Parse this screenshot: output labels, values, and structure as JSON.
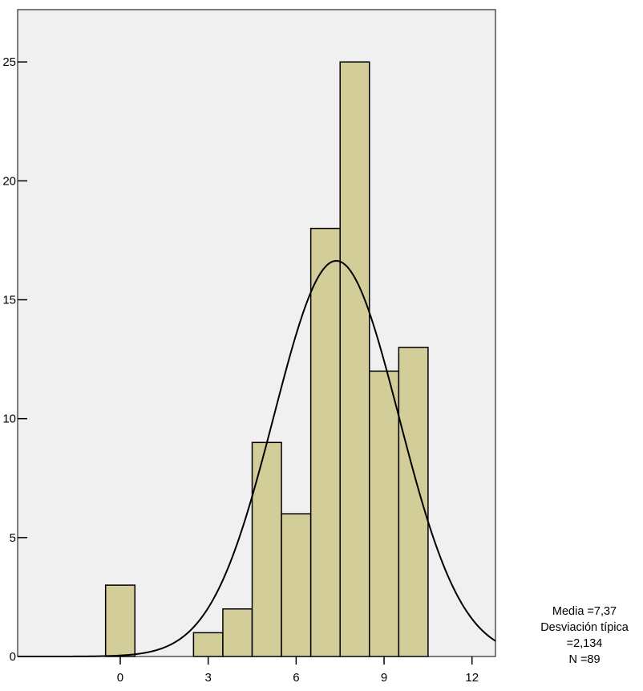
{
  "chart_data": {
    "type": "bar",
    "subtype": "histogram",
    "bins": [
      {
        "from": -0.5,
        "to": 0.5,
        "value": 3
      },
      {
        "from": 2.5,
        "to": 3.5,
        "value": 1
      },
      {
        "from": 3.5,
        "to": 4.5,
        "value": 2
      },
      {
        "from": 4.5,
        "to": 5.5,
        "value": 9
      },
      {
        "from": 5.5,
        "to": 6.5,
        "value": 6
      },
      {
        "from": 6.5,
        "to": 7.5,
        "value": 18
      },
      {
        "from": 7.5,
        "to": 8.5,
        "value": 25
      },
      {
        "from": 8.5,
        "to": 9.5,
        "value": 12
      },
      {
        "from": 9.5,
        "to": 10.5,
        "value": 13
      }
    ],
    "normal_curve": {
      "mean": 7.37,
      "std": 2.134,
      "n": 89,
      "bin_width": 1
    },
    "xlim": [
      -3.5,
      12.8
    ],
    "ylim": [
      0,
      27.2
    ],
    "xticks": [
      "0",
      "3",
      "6",
      "9",
      "12"
    ],
    "yticks": [
      "0",
      "5",
      "10",
      "15",
      "20",
      "25"
    ],
    "colors": {
      "bar_fill": "#d3cd99",
      "bar_stroke": "#000000",
      "plot_bg": "#f0f0f0",
      "curve": "#000000"
    },
    "grid": false,
    "title": "",
    "xlabel": "",
    "ylabel": ""
  },
  "stats_box": {
    "mean_line": "Media =7,37",
    "std_label": "Desviación típica",
    "std_value": "=2,134",
    "n_line": "N =89"
  }
}
